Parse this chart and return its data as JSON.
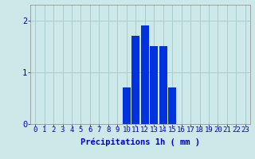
{
  "hours": [
    0,
    1,
    2,
    3,
    4,
    5,
    6,
    7,
    8,
    9,
    10,
    11,
    12,
    13,
    14,
    15,
    16,
    17,
    18,
    19,
    20,
    21,
    22,
    23
  ],
  "values": [
    0,
    0,
    0,
    0,
    0,
    0,
    0,
    0,
    0,
    0,
    0.7,
    1.7,
    1.9,
    1.5,
    1.5,
    0.7,
    0,
    0,
    0,
    0,
    0,
    0,
    0,
    0
  ],
  "bar_color": "#0033dd",
  "background_color": "#cce8e8",
  "grid_color": "#aacccc",
  "axis_label_color": "#0000cc",
  "xlabel": "Précipitations 1h ( mm )",
  "ylim": [
    0,
    2.3
  ],
  "yticks": [
    0,
    1,
    2
  ],
  "xlim": [
    -0.5,
    23.5
  ],
  "xlabel_fontsize": 7.5,
  "tick_fontsize": 6.5,
  "bar_width": 0.85
}
